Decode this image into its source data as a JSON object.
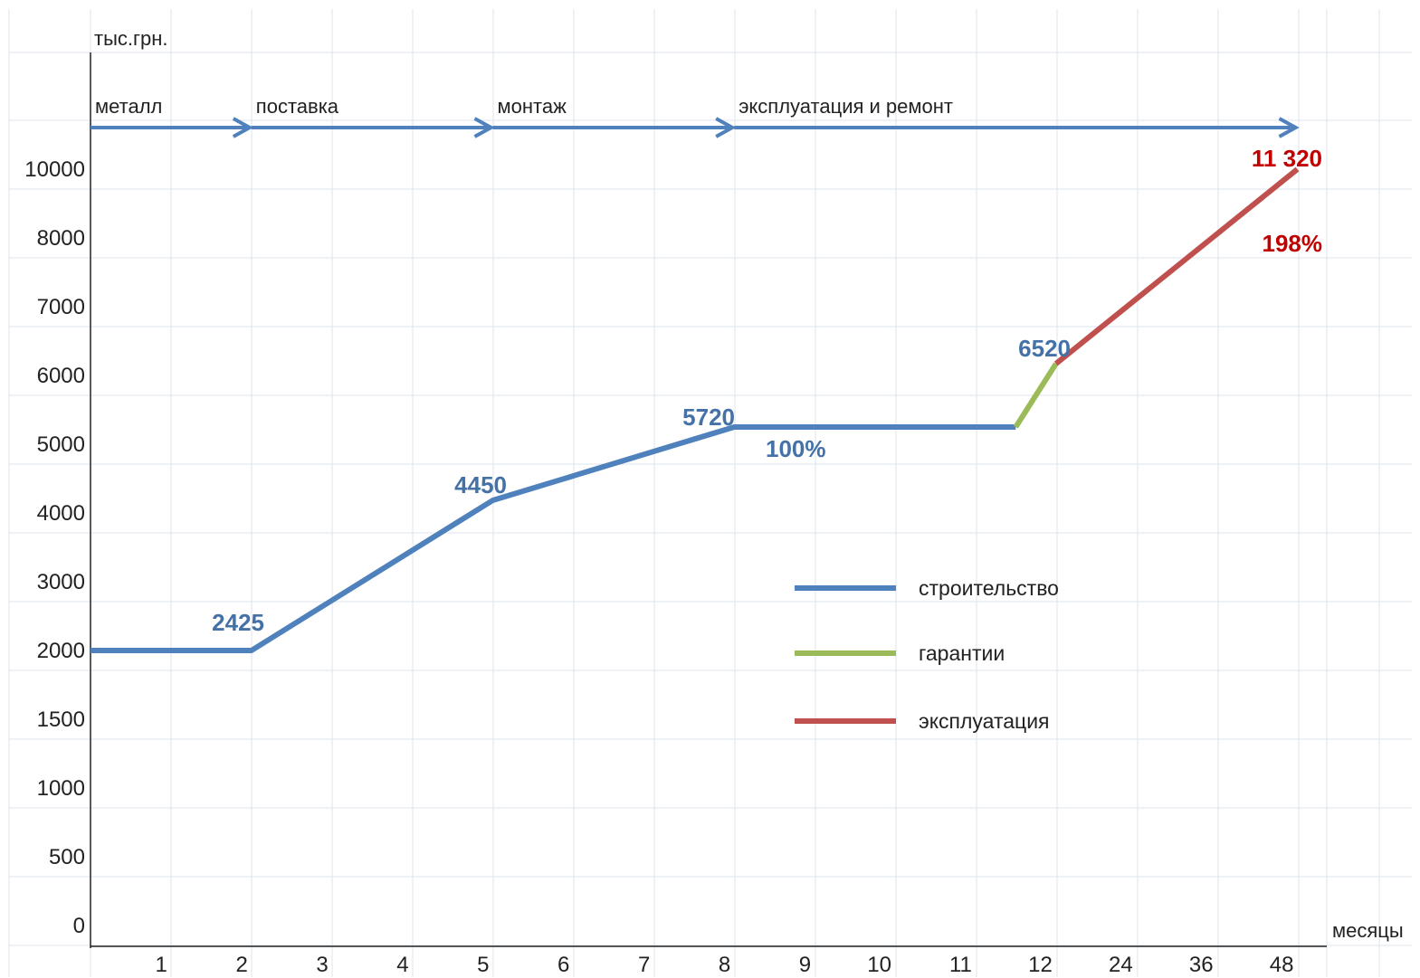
{
  "chart_data": {
    "type": "line",
    "ylabel": "тыс.грн.",
    "xlabel": "месяцы",
    "x_categories": [
      "1",
      "2",
      "3",
      "4",
      "5",
      "6",
      "7",
      "8",
      "9",
      "10",
      "11",
      "12",
      "24",
      "36",
      "48"
    ],
    "y_ticks": [
      "0",
      "500",
      "1000",
      "1500",
      "2000",
      "3000",
      "4000",
      "5000",
      "6000",
      "7000",
      "8000",
      "10000"
    ],
    "phases": [
      {
        "label": "металл",
        "from": "0",
        "to": "2"
      },
      {
        "label": "поставка",
        "from": "2",
        "to": "5"
      },
      {
        "label": "монтаж",
        "from": "5",
        "to": "8"
      },
      {
        "label": "эксплуатация и ремонт",
        "from": "8",
        "to": "48"
      }
    ],
    "series": [
      {
        "name": "строительство",
        "color": "#4f81bd",
        "points": [
          {
            "x": "0",
            "y": 2425
          },
          {
            "x": "2",
            "y": 2425
          },
          {
            "x": "5",
            "y": 4450
          },
          {
            "x": "8",
            "y": 5720
          },
          {
            "x": "11.5",
            "y": 5720
          }
        ]
      },
      {
        "name": "гарантии",
        "color": "#9bbb59",
        "points": [
          {
            "x": "11.5",
            "y": 5720
          },
          {
            "x": "12",
            "y": 6520
          }
        ]
      },
      {
        "name": "эксплуатация",
        "color": "#c0504d",
        "points": [
          {
            "x": "12",
            "y": 6520
          },
          {
            "x": "48",
            "y": 11320
          }
        ]
      }
    ],
    "data_labels": [
      {
        "text": "2425",
        "color": "#4472a8"
      },
      {
        "text": "4450",
        "color": "#4472a8"
      },
      {
        "text": "5720",
        "color": "#4472a8"
      },
      {
        "text": "100%",
        "color": "#4472a8"
      },
      {
        "text": "6520",
        "color": "#4472a8"
      },
      {
        "text": "11 320",
        "color": "#c00000"
      },
      {
        "text": "198%",
        "color": "#c00000"
      }
    ],
    "grid": true,
    "legend_position": "center-right"
  }
}
